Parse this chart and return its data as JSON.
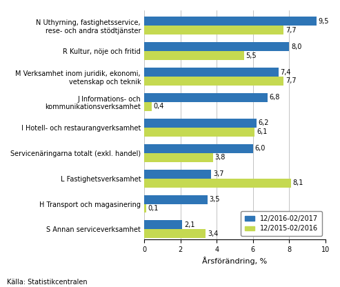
{
  "categories": [
    "N Uthyrning, fastighetsservice,\nrese- och andra stödtjänster",
    "R Kultur, nöje och fritid",
    "M Verksamhet inom juridik, ekonomi,\nvetenskap och teknik",
    "J Informations- och\nkommunikationsverksamhet",
    "I Hotell- och restaurangverksamhet",
    "Servicenäringarna totalt (exkl. handel)",
    "L Fastighetsverksamhet",
    "H Transport och magasinering",
    "S Annan serviceverksamhet"
  ],
  "values_2017": [
    9.5,
    8.0,
    7.4,
    6.8,
    6.2,
    6.0,
    3.7,
    3.5,
    2.1
  ],
  "values_2016": [
    7.7,
    5.5,
    7.7,
    0.4,
    6.1,
    3.8,
    8.1,
    0.1,
    3.4
  ],
  "color_2017": "#2E75B6",
  "color_2016": "#C5D951",
  "xlabel": "Årsförändring, %",
  "xlim": [
    0,
    10
  ],
  "xticks": [
    0,
    2,
    4,
    6,
    8,
    10
  ],
  "legend_2017": "12/2016-02/2017",
  "legend_2016": "12/2015-02/2016",
  "source": "Källa: Statistikcentralen",
  "bar_height": 0.35,
  "label_fontsize": 7.0,
  "tick_fontsize": 7.0,
  "xlabel_fontsize": 8.0,
  "source_fontsize": 7.0,
  "legend_fontsize": 7.0
}
